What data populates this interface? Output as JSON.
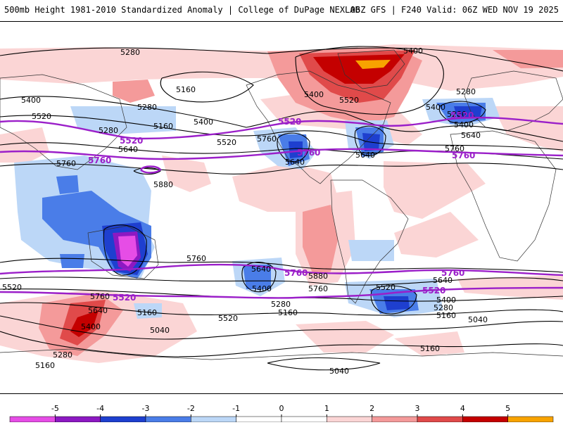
{
  "header": {
    "title_left": "500mb Height 1981-2010 Standardized Anomaly | College of DuPage NEXLAB",
    "title_right": "06Z GFS | F240 Valid: 06Z WED NOV 19 2025"
  },
  "map": {
    "contour_labels_black": [
      "5280",
      "5400",
      "5160",
      "5280",
      "5400",
      "5520",
      "5280",
      "5160",
      "5400",
      "5520",
      "5640",
      "5760",
      "5880",
      "5400",
      "5520",
      "5280",
      "5640",
      "5760",
      "5640",
      "5400",
      "5280",
      "5400",
      "5640",
      "5760",
      "5760",
      "5520",
      "5640",
      "5400",
      "5160",
      "5040",
      "5520",
      "5400",
      "5280",
      "5160",
      "5280",
      "5160",
      "5760",
      "5640",
      "5880",
      "5760",
      "5520",
      "5640",
      "5400",
      "5280",
      "5160",
      "5040",
      "5160",
      "5040"
    ],
    "contour_labels_purple": [
      "5520",
      "5520",
      "5760",
      "5760",
      "5520",
      "5760",
      "5760",
      "5520",
      "5760",
      "5520"
    ],
    "colors": {
      "neg5": "#e64de6",
      "neg4": "#8c19c2",
      "neg3": "#1e3fcf",
      "neg2": "#4a7de8",
      "neg1": "#bcd7f7",
      "pos1": "#fbd5d5",
      "pos2": "#f49a9a",
      "pos3": "#e04a4a",
      "pos4": "#c40000",
      "pos5": "#f8a300",
      "highlight": "#9b1fc9"
    }
  },
  "colorbar": {
    "ticks": [
      "-5",
      "-4",
      "-3",
      "-2",
      "-1",
      "0",
      "1",
      "2",
      "3",
      "4",
      "5"
    ],
    "values": [
      -5,
      -4,
      -3,
      -2,
      -1,
      0,
      1,
      2,
      3,
      4,
      5
    ]
  }
}
